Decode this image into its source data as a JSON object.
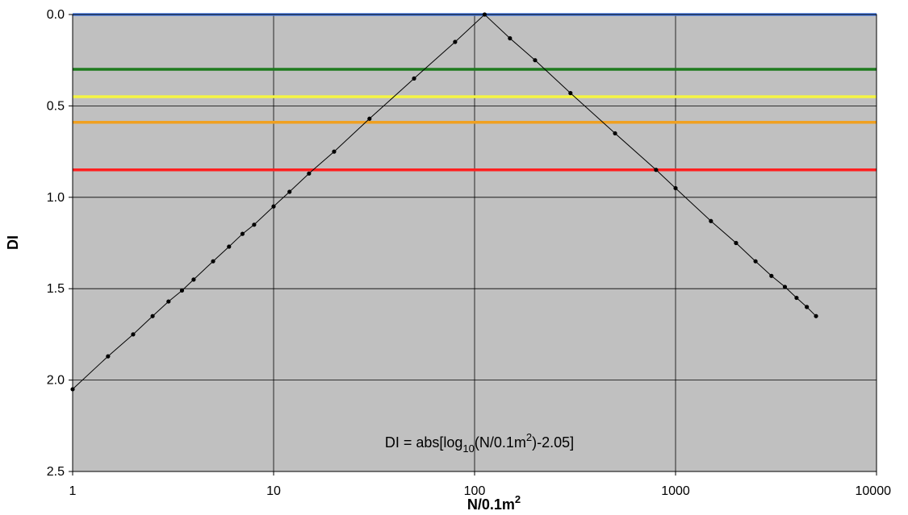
{
  "chart_data": {
    "type": "scatter",
    "xscale": "log",
    "xlim": [
      1,
      10000
    ],
    "ylim": [
      0,
      2.5
    ],
    "y_inverted": true,
    "grid": true,
    "plot_background": "#c0c0c0",
    "xlabel_main": "N/0.1m",
    "xlabel_sup": "2",
    "ylabel": "DI",
    "x_ticks": [
      1,
      10,
      100,
      1000,
      10000
    ],
    "x_tick_labels": [
      "1",
      "10",
      "100",
      "1000",
      "10000"
    ],
    "y_ticks": [
      0,
      0.5,
      1.0,
      1.5,
      2.0,
      2.5
    ],
    "y_tick_labels": [
      "0.0",
      "0.5",
      "1.0",
      "1.5",
      "2.0",
      "2.5"
    ],
    "annotation": {
      "prefix": "DI = abs[log",
      "sub": "10",
      "mid": "(N/0.1m",
      "sup": "2",
      "suffix": ")-2.05]"
    },
    "reference_lines": [
      {
        "y": 0.0,
        "color": "#4a7fe8"
      },
      {
        "y": 0.3,
        "color": "#1e7a1e"
      },
      {
        "y": 0.45,
        "color": "#f5f542"
      },
      {
        "y": 0.59,
        "color": "#f0a020"
      },
      {
        "y": 0.85,
        "color": "#ff2020"
      }
    ],
    "series": [
      {
        "color": "#000000",
        "formula": "DI = abs(log10(N) - 2.05)",
        "x": [
          1,
          1.5,
          2,
          2.5,
          3,
          3.5,
          4,
          5,
          6,
          7,
          8,
          10,
          12,
          15,
          20,
          30,
          50,
          80,
          112.2,
          150,
          200,
          300,
          500,
          800,
          1000,
          1500,
          2000,
          2500,
          3000,
          3500,
          4000,
          4500,
          5000
        ],
        "y": [
          2.05,
          1.87,
          1.75,
          1.65,
          1.57,
          1.51,
          1.45,
          1.35,
          1.27,
          1.2,
          1.15,
          1.05,
          0.97,
          0.87,
          0.75,
          0.57,
          0.35,
          0.15,
          0.0,
          0.13,
          0.25,
          0.43,
          0.65,
          0.85,
          0.95,
          1.13,
          1.25,
          1.35,
          1.43,
          1.49,
          1.55,
          1.6,
          1.65
        ]
      }
    ]
  }
}
